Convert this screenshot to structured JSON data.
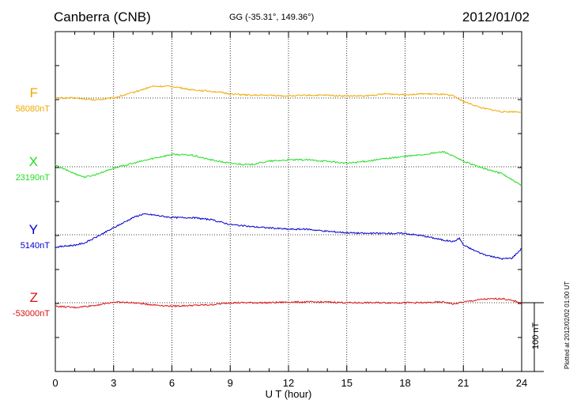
{
  "header": {
    "station": "Canberra (CNB)",
    "coords": "GG (-35.31°, 149.36°)",
    "date": "2012/01/02"
  },
  "chart_data": {
    "type": "line",
    "xlabel": "U T (hour)",
    "xlim": [
      0,
      24
    ],
    "xticks": [
      "0",
      "3",
      "6",
      "9",
      "12",
      "15",
      "18",
      "21",
      "24"
    ],
    "grid": true,
    "scale_bar": "100 nT",
    "plotted_note": "Plotted at 2012/02/02 01:00 UT",
    "series": [
      {
        "name": "F",
        "baseline": "58080nT",
        "color": "#f0a800",
        "x": [
          0,
          1,
          2,
          3,
          4,
          5,
          6,
          7,
          8,
          9,
          10,
          11,
          12,
          13,
          14,
          15,
          16,
          17,
          18,
          19,
          20,
          20.5,
          21,
          22,
          23,
          24
        ],
        "y": [
          0,
          0,
          -3,
          0,
          8,
          17,
          17,
          12,
          10,
          6,
          4,
          4,
          3,
          4,
          4,
          3,
          3,
          6,
          5,
          6,
          5,
          3,
          -5,
          -15,
          -20,
          -20
        ]
      },
      {
        "name": "X",
        "baseline": "23190nT",
        "color": "#22dd22",
        "x": [
          0,
          1,
          1.5,
          2,
          3,
          4,
          5,
          5.5,
          6,
          7,
          8,
          9,
          10,
          11,
          12,
          13,
          14,
          15,
          16,
          17,
          18,
          19,
          20,
          20.5,
          21,
          22,
          23,
          24
        ],
        "y": [
          2,
          -10,
          -15,
          -12,
          -2,
          5,
          12,
          15,
          18,
          17,
          10,
          5,
          3,
          8,
          10,
          10,
          8,
          5,
          8,
          12,
          15,
          18,
          22,
          15,
          8,
          -2,
          -10,
          -28
        ]
      },
      {
        "name": "Y",
        "baseline": "5140nT",
        "color": "#0000cc",
        "x": [
          0,
          1,
          1.5,
          2,
          3,
          4,
          4.5,
          5,
          6,
          7,
          8,
          9,
          10,
          11,
          12,
          13,
          14,
          15,
          16,
          17,
          18,
          19,
          20,
          20.5,
          20.8,
          21,
          21.5,
          22,
          22.5,
          23,
          23.5,
          24
        ],
        "y": [
          -18,
          -15,
          -12,
          -5,
          10,
          25,
          30,
          29,
          25,
          25,
          22,
          15,
          12,
          10,
          8,
          8,
          5,
          3,
          2,
          2,
          2,
          -2,
          -8,
          -10,
          -5,
          -15,
          -22,
          -28,
          -32,
          -35,
          -34,
          -20
        ]
      },
      {
        "name": "Z",
        "baseline": "-53000nT",
        "color": "#dd1111",
        "x": [
          0,
          1,
          2,
          3,
          4,
          5,
          6,
          7,
          8,
          9,
          10,
          11,
          12,
          13,
          14,
          15,
          16,
          17,
          18,
          19,
          20,
          20.5,
          21,
          22,
          23,
          24
        ],
        "y": [
          -5,
          -7,
          -4,
          1,
          0,
          -3,
          -5,
          -4,
          -3,
          0,
          0,
          0,
          1,
          1,
          1,
          0,
          0,
          0,
          0,
          0,
          1,
          -2,
          1,
          5,
          6,
          0
        ]
      }
    ]
  }
}
